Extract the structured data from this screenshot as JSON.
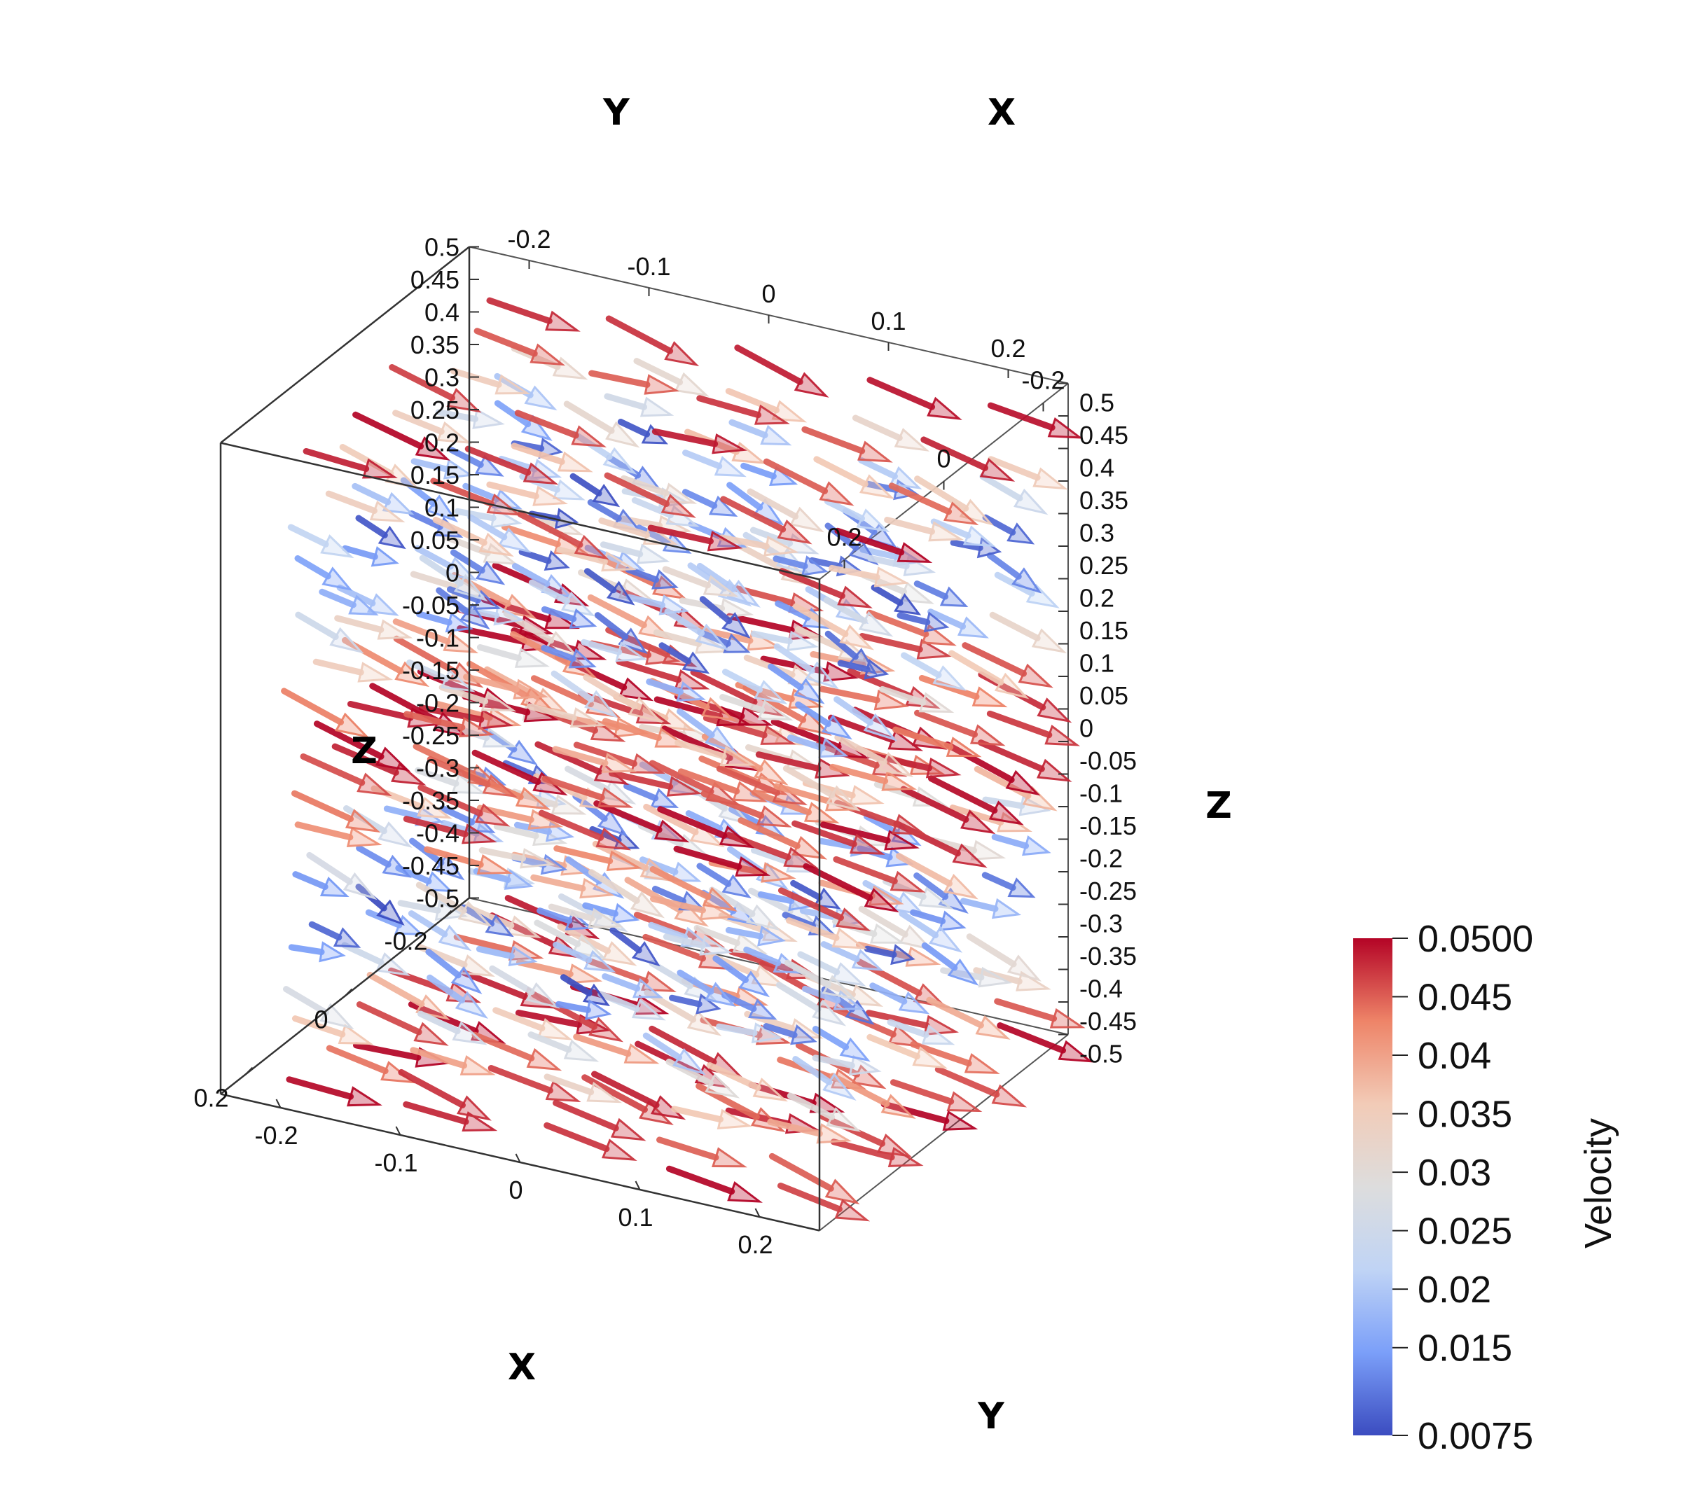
{
  "chart_data": {
    "type": "3d-vector-field",
    "field": "Velocity",
    "axes": {
      "x": {
        "title": "X",
        "range": [
          -0.25,
          0.25
        ],
        "ticks": [
          "-0.2",
          "0",
          "0.2"
        ],
        "extra_ticks": [
          "-0.2",
          "-0.1",
          "0",
          "0.1",
          "0.2"
        ]
      },
      "y": {
        "title": "Y",
        "range": [
          -0.25,
          0.25
        ],
        "ticks": [
          "-0.2",
          "-0.1",
          "0",
          "0.1",
          "0.2"
        ]
      },
      "z": {
        "title": "Z",
        "range": [
          -0.5,
          0.5
        ],
        "ticks": [
          "0.5",
          "0.45",
          "0.4",
          "0.35",
          "0.3",
          "0.25",
          "0.2",
          "0.15",
          "0.1",
          "0.05",
          "0",
          "-0.05",
          "-0.1",
          "-0.15",
          "-0.2",
          "-0.25",
          "-0.3",
          "-0.35",
          "-0.4",
          "-0.45",
          "-0.5"
        ]
      }
    },
    "colorbar": {
      "title": "Velocity",
      "min": 0.0075,
      "max": 0.05,
      "ticks": [
        "0.0500",
        "0.045",
        "0.04",
        "0.035",
        "0.03",
        "0.025",
        "0.02",
        "0.015",
        "0.0075"
      ],
      "tick_values": [
        0.05,
        0.045,
        0.04,
        0.035,
        0.03,
        0.025,
        0.02,
        0.015,
        0.0075
      ],
      "colormap": [
        "#3b4cc0",
        "#7b9ff9",
        "#c0d4f5",
        "#dddddd",
        "#f2cbb7",
        "#ee8468",
        "#b40426"
      ]
    },
    "layers": [
      {
        "z": 0.47,
        "velocity": 0.048
      },
      {
        "z": 0.41,
        "velocity": 0.035
      },
      {
        "z": 0.36,
        "velocity": 0.022
      },
      {
        "z": 0.31,
        "velocity": 0.012
      },
      {
        "z": 0.26,
        "velocity": 0.013
      },
      {
        "z": 0.21,
        "velocity": 0.021
      },
      {
        "z": 0.16,
        "velocity": 0.032
      },
      {
        "z": 0.11,
        "velocity": 0.042
      },
      {
        "z": 0.06,
        "velocity": 0.048
      },
      {
        "z": 0.01,
        "velocity": 0.049
      },
      {
        "z": -0.04,
        "velocity": 0.046
      },
      {
        "z": -0.09,
        "velocity": 0.04
      },
      {
        "z": -0.14,
        "velocity": 0.028
      },
      {
        "z": -0.19,
        "velocity": 0.016
      },
      {
        "z": -0.24,
        "velocity": 0.011
      },
      {
        "z": -0.29,
        "velocity": 0.017
      },
      {
        "z": -0.34,
        "velocity": 0.027
      },
      {
        "z": -0.39,
        "velocity": 0.037
      },
      {
        "z": -0.44,
        "velocity": 0.045
      },
      {
        "z": -0.48,
        "velocity": 0.049
      }
    ],
    "grid": {
      "x_points": [
        -0.2,
        -0.1,
        0,
        0.1,
        0.2
      ],
      "y_points": [
        -0.2,
        -0.1,
        0,
        0.1,
        0.2
      ]
    },
    "direction": "+Y"
  }
}
